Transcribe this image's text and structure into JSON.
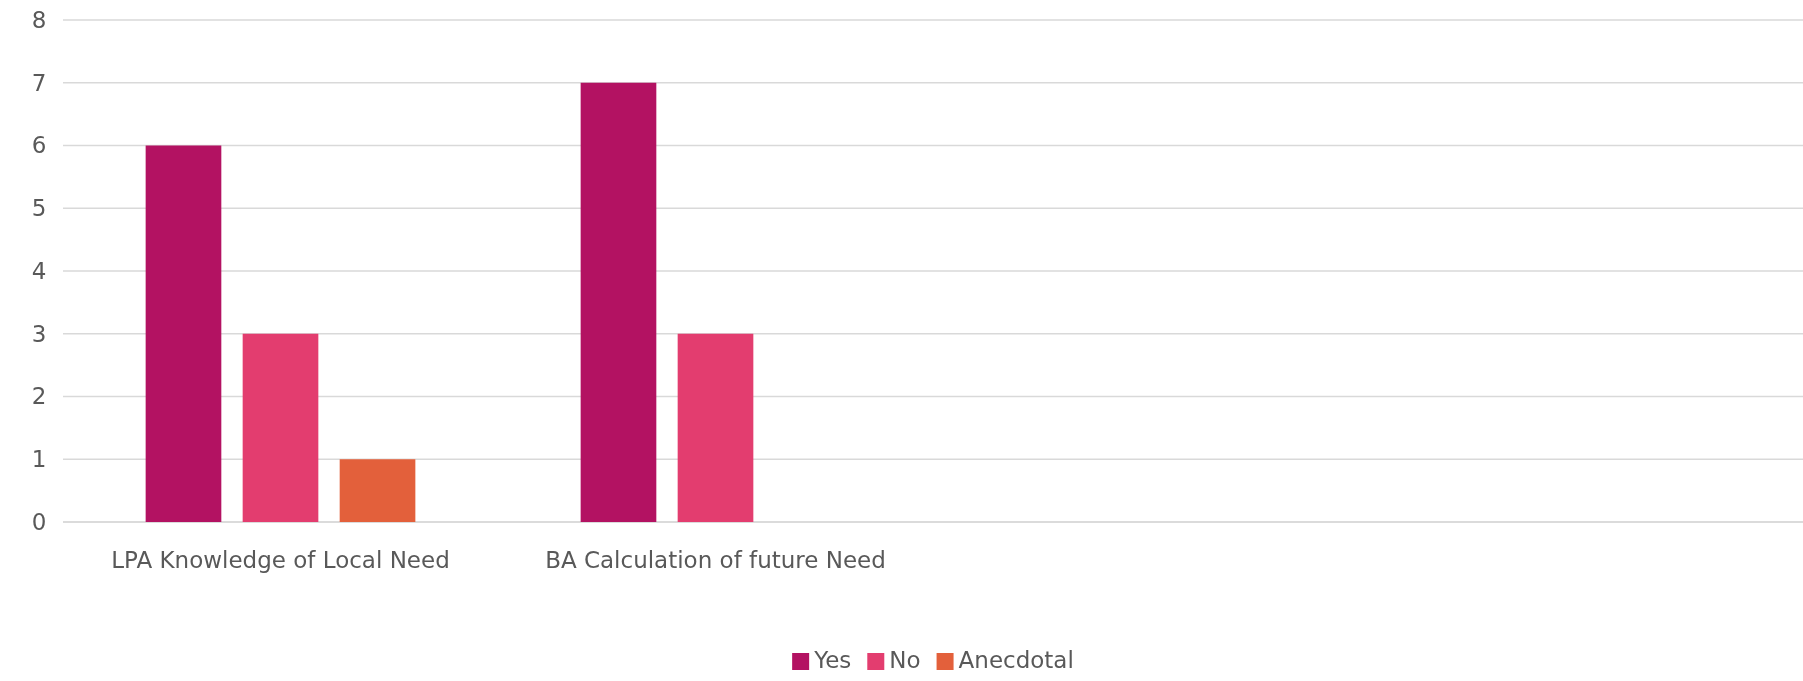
{
  "chart_data": {
    "type": "bar",
    "categories": [
      "LPA Knowledge of Local Need",
      "BA Calculation of future Need",
      null,
      null
    ],
    "series": [
      {
        "name": "Yes",
        "color": "#b31262",
        "values": [
          6,
          7,
          null,
          null
        ]
      },
      {
        "name": "No",
        "color": "#e33d6f",
        "values": [
          3,
          3,
          null,
          null
        ]
      },
      {
        "name": "Anecdotal",
        "color": "#e3603b",
        "values": [
          1,
          null,
          null,
          null
        ]
      }
    ],
    "ylim": [
      0,
      8
    ],
    "yticks": [
      0,
      1,
      2,
      3,
      4,
      5,
      6,
      7,
      8
    ],
    "grid": "y",
    "legend": "bottom"
  }
}
